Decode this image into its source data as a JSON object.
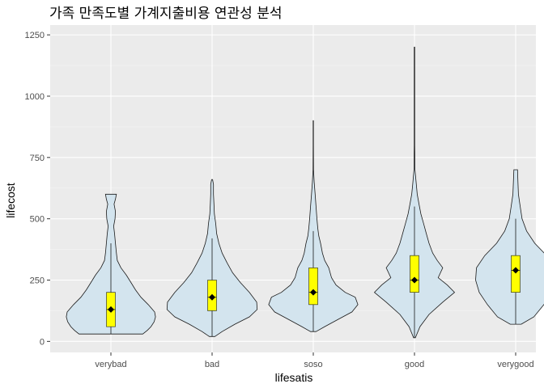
{
  "chart_data": {
    "type": "violin",
    "title": "가족 만족도별 가계지출비용 연관성 분석",
    "xlabel": "lifesatis",
    "ylabel": "lifecost",
    "categories": [
      "verybad",
      "bad",
      "soso",
      "good",
      "verygood"
    ],
    "ylim": [
      -45,
      1290
    ],
    "yticks": [
      0,
      250,
      500,
      750,
      1000,
      1250
    ],
    "grid": true,
    "colors": {
      "panel": "#ebebeb",
      "grid_major": "#ffffff",
      "grid_minor": "#f5f5f5",
      "violin_fill": "#d3e4ee",
      "violin_outline": "#1a1a1a",
      "box_fill": "#ffff00",
      "mean_point": "#000000"
    },
    "groups": [
      {
        "category": "verybad",
        "box": {
          "q1": 60,
          "median": 130,
          "q3": 200,
          "whisker_low": 30,
          "whisker_high": 400
        },
        "mean": 130,
        "density": [
          [
            30,
            0.7
          ],
          [
            45,
            0.8
          ],
          [
            60,
            0.88
          ],
          [
            80,
            0.95
          ],
          [
            100,
            0.98
          ],
          [
            120,
            0.96
          ],
          [
            150,
            0.82
          ],
          [
            180,
            0.66
          ],
          [
            210,
            0.54
          ],
          [
            240,
            0.44
          ],
          [
            270,
            0.34
          ],
          [
            300,
            0.22
          ],
          [
            330,
            0.14
          ],
          [
            360,
            0.12
          ],
          [
            400,
            0.1
          ],
          [
            440,
            0.08
          ],
          [
            470,
            0.06
          ],
          [
            500,
            0.09
          ],
          [
            530,
            0.1
          ],
          [
            560,
            0.07
          ],
          [
            580,
            0.1
          ],
          [
            600,
            0.12
          ]
        ]
      },
      {
        "category": "bad",
        "box": {
          "q1": 125,
          "median": 180,
          "q3": 250,
          "whisker_low": 20,
          "whisker_high": 420
        },
        "mean": 180,
        "density": [
          [
            20,
            0.06
          ],
          [
            40,
            0.22
          ],
          [
            70,
            0.5
          ],
          [
            100,
            0.82
          ],
          [
            130,
            0.99
          ],
          [
            160,
            0.98
          ],
          [
            200,
            0.82
          ],
          [
            240,
            0.62
          ],
          [
            280,
            0.45
          ],
          [
            320,
            0.33
          ],
          [
            360,
            0.22
          ],
          [
            400,
            0.15
          ],
          [
            440,
            0.1
          ],
          [
            480,
            0.08
          ],
          [
            520,
            0.05
          ],
          [
            560,
            0.04
          ],
          [
            600,
            0.03
          ],
          [
            640,
            0.03
          ],
          [
            660,
            0.01
          ]
        ]
      },
      {
        "category": "soso",
        "box": {
          "q1": 150,
          "median": 200,
          "q3": 300,
          "whisker_low": 40,
          "whisker_high": 450
        },
        "mean": 200,
        "density": [
          [
            40,
            0.06
          ],
          [
            60,
            0.25
          ],
          [
            90,
            0.55
          ],
          [
            120,
            0.85
          ],
          [
            150,
            0.98
          ],
          [
            180,
            0.92
          ],
          [
            200,
            0.7
          ],
          [
            230,
            0.5
          ],
          [
            260,
            0.4
          ],
          [
            300,
            0.34
          ],
          [
            330,
            0.25
          ],
          [
            360,
            0.2
          ],
          [
            400,
            0.16
          ],
          [
            430,
            0.12
          ],
          [
            460,
            0.1
          ],
          [
            500,
            0.08
          ],
          [
            550,
            0.06
          ],
          [
            600,
            0.04
          ],
          [
            650,
            0.02
          ],
          [
            700,
            0.005
          ],
          [
            800,
            0.004
          ],
          [
            900,
            0.003
          ]
        ]
      },
      {
        "category": "good",
        "box": {
          "q1": 200,
          "median": 250,
          "q3": 350,
          "whisker_low": 15,
          "whisker_high": 550
        },
        "mean": 250,
        "density": [
          [
            15,
            0.02
          ],
          [
            60,
            0.12
          ],
          [
            110,
            0.32
          ],
          [
            160,
            0.62
          ],
          [
            200,
            0.88
          ],
          [
            230,
            0.72
          ],
          [
            260,
            0.52
          ],
          [
            300,
            0.62
          ],
          [
            330,
            0.5
          ],
          [
            360,
            0.4
          ],
          [
            400,
            0.32
          ],
          [
            440,
            0.26
          ],
          [
            480,
            0.2
          ],
          [
            520,
            0.14
          ],
          [
            560,
            0.1
          ],
          [
            600,
            0.06
          ],
          [
            640,
            0.04
          ],
          [
            700,
            0.01
          ],
          [
            800,
            0.005
          ],
          [
            1000,
            0.005
          ],
          [
            1200,
            0.005
          ]
        ]
      },
      {
        "category": "verygood",
        "box": {
          "q1": 200,
          "median": 290,
          "q3": 350,
          "whisker_low": 70,
          "whisker_high": 500
        },
        "mean": 290,
        "density": [
          [
            70,
            0.12
          ],
          [
            100,
            0.4
          ],
          [
            150,
            0.62
          ],
          [
            200,
            0.8
          ],
          [
            250,
            0.88
          ],
          [
            300,
            0.86
          ],
          [
            350,
            0.68
          ],
          [
            400,
            0.42
          ],
          [
            450,
            0.24
          ],
          [
            500,
            0.14
          ],
          [
            550,
            0.1
          ],
          [
            600,
            0.06
          ],
          [
            650,
            0.05
          ],
          [
            700,
            0.04
          ]
        ]
      }
    ]
  }
}
